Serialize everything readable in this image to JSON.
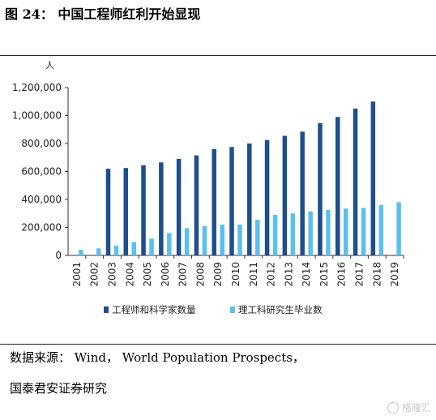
{
  "figure": {
    "title": "图 24： 中国工程师红利开始显现",
    "source_line1": "数据来源： Wind， World Population Prospects，",
    "source_line2": "国泰君安证券研究",
    "watermark": "格隆汇"
  },
  "colors": {
    "engineers": "#1f4e8c",
    "graduates": "#5bc0eb",
    "axis": "#333333",
    "text": "#222222"
  },
  "chart_data": {
    "type": "bar",
    "y_unit": "人",
    "ylim": [
      0,
      1200000
    ],
    "y_ticks": [
      {
        "value": 0,
        "label": "0"
      },
      {
        "value": 200000,
        "label": "200,000"
      },
      {
        "value": 400000,
        "label": "400,000"
      },
      {
        "value": 600000,
        "label": "600,000"
      },
      {
        "value": 800000,
        "label": "800,000"
      },
      {
        "value": 1000000,
        "label": "1,000,000"
      },
      {
        "value": 1200000,
        "label": "1,200,000"
      }
    ],
    "categories": [
      "2001",
      "2002",
      "2003",
      "2004",
      "2005",
      "2006",
      "2007",
      "2008",
      "2009",
      "2010",
      "2011",
      "2012",
      "2013",
      "2014",
      "2015",
      "2016",
      "2017",
      "2018",
      "2019"
    ],
    "series": [
      {
        "name": "工程师和科学家数量",
        "color": "#1f4e8c",
        "values": [
          null,
          null,
          620000,
          625000,
          645000,
          665000,
          690000,
          715000,
          760000,
          775000,
          800000,
          825000,
          855000,
          885000,
          945000,
          990000,
          1050000,
          1100000,
          null
        ]
      },
      {
        "name": "理工科研究生毕业数",
        "color": "#5bc0eb",
        "values": [
          40000,
          50000,
          70000,
          95000,
          120000,
          160000,
          195000,
          210000,
          220000,
          220000,
          255000,
          290000,
          300000,
          315000,
          325000,
          335000,
          340000,
          360000,
          380000
        ]
      }
    ],
    "legend": "bottom-center",
    "grid": false
  }
}
